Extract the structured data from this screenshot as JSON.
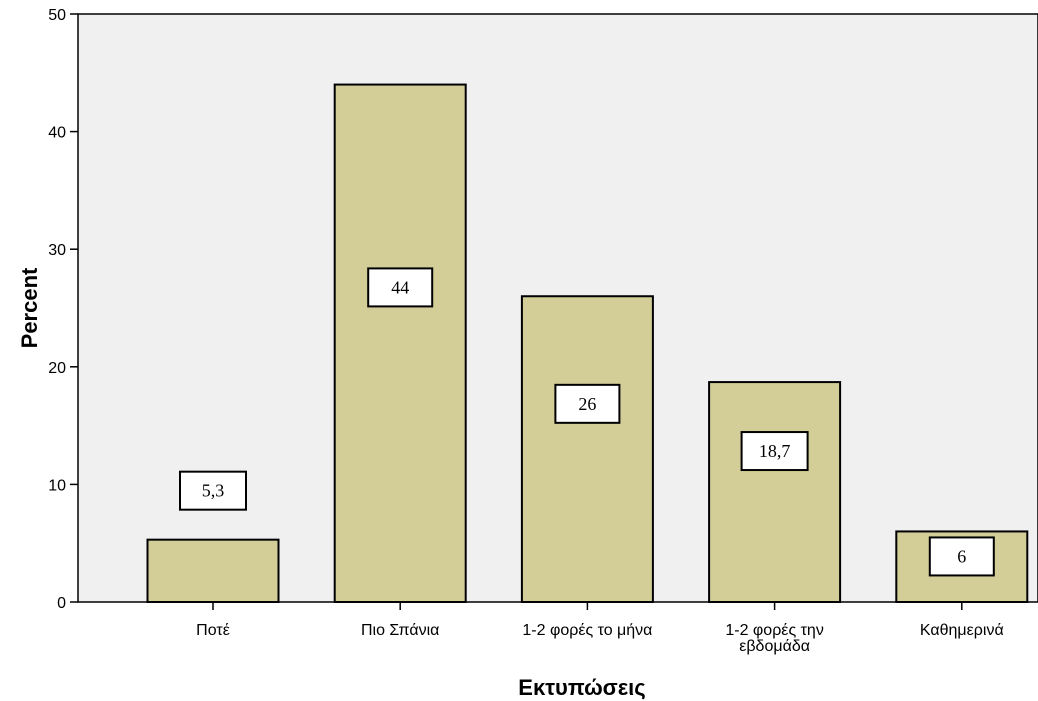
{
  "chart_data": {
    "type": "bar",
    "title": "",
    "xlabel": "Εκτυπώσεις",
    "ylabel": "Percent",
    "categories": [
      [
        "Ποτέ"
      ],
      [
        "Πιο Σπάνια"
      ],
      [
        "1-2 φορές το μήνα"
      ],
      [
        "1-2 φορές την",
        "εβδομάδα"
      ],
      [
        "Καθημερινά"
      ]
    ],
    "values": [
      5.3,
      44,
      26,
      18.7,
      6
    ],
    "data_labels": [
      "5,3",
      "44",
      "26",
      "18,7",
      "6"
    ],
    "ylim": [
      0,
      50
    ],
    "yticks": [
      0,
      10,
      20,
      30,
      40,
      50
    ],
    "grid": false,
    "legend": "none",
    "colors": {
      "plot_background": "#f0f0f0",
      "bar_fill": "#d3ce97",
      "bar_stroke": "#000000",
      "label_box_fill": "#ffffff"
    }
  }
}
